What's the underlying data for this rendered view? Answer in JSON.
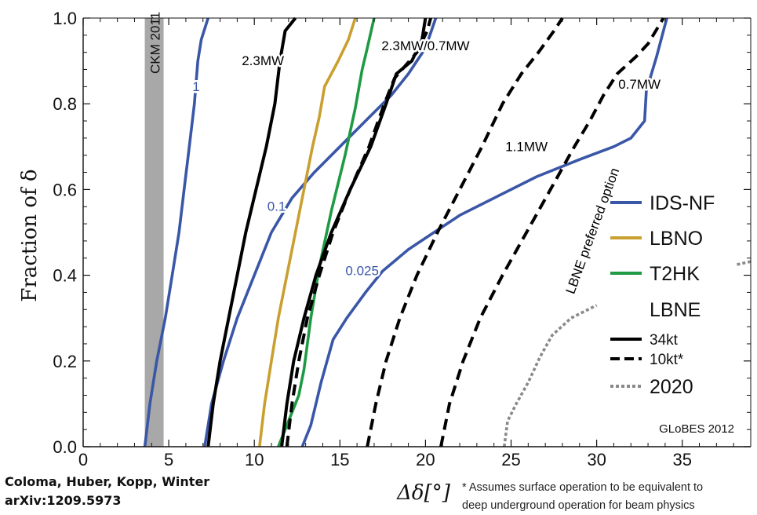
{
  "credits": {
    "authors": "Coloma, Huber, Kopp, Winter",
    "arxiv": "arXiv:1209.5973"
  },
  "footnote": {
    "line1": "* Assumes surface operation to be equivalent to",
    "line2": "deep underground operation for beam physics"
  },
  "chart_data": {
    "type": "line",
    "xlabel": "Δδ[°]",
    "ylabel": "Fraction of δ",
    "xlim": [
      0,
      39
    ],
    "ylim": [
      0,
      1
    ],
    "x_ticks": [
      "0",
      "5",
      "10",
      "15",
      "20",
      "25",
      "30",
      "35"
    ],
    "y_ticks": [
      "0.0",
      "0.2",
      "0.4",
      "0.6",
      "0.8",
      "1.0"
    ],
    "grid": false,
    "legend_position": "right",
    "colors": {
      "IDS-NF": "#3a57a7",
      "LBNO": "#c9a030",
      "T2HK": "#1f9a44",
      "LBNE": "#000000",
      "2020": "#8a8a8a",
      "band": "#a8a8a8"
    },
    "band": {
      "label": "CKM 2011",
      "x_range": [
        3.6,
        4.7
      ]
    },
    "legend": {
      "items": [
        {
          "label": "IDS-NF",
          "style": "blue"
        },
        {
          "label": "LBNO",
          "style": "gold"
        },
        {
          "label": "T2HK",
          "style": "green"
        }
      ],
      "group_title": "LBNE",
      "subitems": [
        {
          "label": "34kt",
          "style": "solid"
        },
        {
          "label": "10kt*",
          "style": "dashed"
        },
        {
          "label": "2020",
          "style": "dotted"
        }
      ]
    },
    "watermark": "GLoBES 2012",
    "annotations": [
      {
        "text": "1",
        "x": 6.6,
        "y": 0.83,
        "color": "#3a57a7"
      },
      {
        "text": "0.1",
        "x": 11.3,
        "y": 0.55,
        "color": "#3a57a7"
      },
      {
        "text": "0.025",
        "x": 16.3,
        "y": 0.4,
        "color": "#3a57a7"
      },
      {
        "text": "2.3MW",
        "x": 10.5,
        "y": 0.89,
        "color": "#000000"
      },
      {
        "text": "2.3MW/0.7MW",
        "x": 20.0,
        "y": 0.925,
        "color": "#000000"
      },
      {
        "text": "1.1MW",
        "x": 25.9,
        "y": 0.69,
        "color": "#000000"
      },
      {
        "text": "0.7MW",
        "x": 32.5,
        "y": 0.835,
        "color": "#000000"
      },
      {
        "text": "LBNE preferred option",
        "x": 30.0,
        "y": 0.5,
        "color": "#000000",
        "rotate": -70
      }
    ],
    "series": [
      {
        "name": "IDS-NF",
        "label": "1",
        "color": "#3a57a7",
        "dash": "solid",
        "points": [
          [
            3.6,
            0.0
          ],
          [
            3.9,
            0.1
          ],
          [
            4.3,
            0.2
          ],
          [
            4.8,
            0.3
          ],
          [
            5.2,
            0.4
          ],
          [
            5.6,
            0.5
          ],
          [
            5.9,
            0.6
          ],
          [
            6.2,
            0.7
          ],
          [
            6.5,
            0.8
          ],
          [
            6.7,
            0.9
          ],
          [
            6.9,
            0.95
          ],
          [
            7.3,
            1.0
          ]
        ]
      },
      {
        "name": "IDS-NF",
        "label": "0.1",
        "color": "#3a57a7",
        "dash": "solid",
        "points": [
          [
            7.1,
            0.0
          ],
          [
            7.5,
            0.1
          ],
          [
            8.2,
            0.2
          ],
          [
            9.0,
            0.3
          ],
          [
            10.0,
            0.4
          ],
          [
            11.0,
            0.5
          ],
          [
            12.2,
            0.58
          ],
          [
            13.5,
            0.64
          ],
          [
            15.0,
            0.7
          ],
          [
            16.5,
            0.76
          ],
          [
            18.0,
            0.82
          ],
          [
            19.0,
            0.87
          ],
          [
            20.0,
            0.93
          ],
          [
            20.6,
            1.0
          ]
        ]
      },
      {
        "name": "IDS-NF",
        "label": "0.025",
        "color": "#3a57a7",
        "dash": "solid",
        "points": [
          [
            12.8,
            0.0
          ],
          [
            13.3,
            0.05
          ],
          [
            13.9,
            0.15
          ],
          [
            14.6,
            0.25
          ],
          [
            15.4,
            0.3
          ],
          [
            16.5,
            0.36
          ],
          [
            17.5,
            0.41
          ],
          [
            19.0,
            0.46
          ],
          [
            20.5,
            0.5
          ],
          [
            22.0,
            0.54
          ],
          [
            24.0,
            0.58
          ],
          [
            26.5,
            0.63
          ],
          [
            29.0,
            0.67
          ],
          [
            31.0,
            0.7
          ],
          [
            32.0,
            0.72
          ],
          [
            32.8,
            0.76
          ],
          [
            32.9,
            0.83
          ],
          [
            33.5,
            0.91
          ],
          [
            33.9,
            0.97
          ],
          [
            34.1,
            1.0
          ]
        ]
      },
      {
        "name": "LBNO",
        "label": "",
        "color": "#c9a030",
        "dash": "solid",
        "points": [
          [
            10.3,
            0.0
          ],
          [
            10.6,
            0.1
          ],
          [
            11.0,
            0.2
          ],
          [
            11.4,
            0.3
          ],
          [
            11.9,
            0.4
          ],
          [
            12.4,
            0.5
          ],
          [
            12.9,
            0.6
          ],
          [
            13.4,
            0.7
          ],
          [
            13.8,
            0.77
          ],
          [
            14.1,
            0.84
          ],
          [
            14.9,
            0.9
          ],
          [
            15.5,
            0.95
          ],
          [
            15.9,
            1.0
          ]
        ]
      },
      {
        "name": "T2HK",
        "label": "",
        "color": "#1f9a44",
        "dash": "solid",
        "points": [
          [
            11.4,
            0.0
          ],
          [
            11.9,
            0.05
          ],
          [
            12.6,
            0.12
          ],
          [
            12.9,
            0.18
          ],
          [
            13.3,
            0.3
          ],
          [
            13.8,
            0.42
          ],
          [
            14.5,
            0.55
          ],
          [
            15.3,
            0.68
          ],
          [
            15.9,
            0.79
          ],
          [
            16.3,
            0.88
          ],
          [
            16.6,
            0.93
          ],
          [
            17.0,
            1.0
          ]
        ]
      },
      {
        "name": "LBNE 34kt",
        "label": "2.3MW",
        "color": "#000000",
        "dash": "solid",
        "points": [
          [
            7.3,
            0.0
          ],
          [
            7.6,
            0.1
          ],
          [
            8.0,
            0.2
          ],
          [
            8.5,
            0.3
          ],
          [
            9.0,
            0.4
          ],
          [
            9.5,
            0.5
          ],
          [
            10.1,
            0.6
          ],
          [
            10.7,
            0.7
          ],
          [
            11.2,
            0.8
          ],
          [
            11.5,
            0.9
          ],
          [
            11.8,
            0.97
          ],
          [
            12.4,
            1.0
          ]
        ]
      },
      {
        "name": "LBNE 34kt",
        "label": "2.3MW/0.7MW",
        "color": "#000000",
        "dash": "solid",
        "points": [
          [
            11.6,
            0.0
          ],
          [
            11.9,
            0.1
          ],
          [
            12.3,
            0.2
          ],
          [
            12.9,
            0.3
          ],
          [
            13.6,
            0.4
          ],
          [
            14.5,
            0.5
          ],
          [
            15.6,
            0.6
          ],
          [
            16.8,
            0.7
          ],
          [
            17.7,
            0.8
          ],
          [
            18.3,
            0.87
          ],
          [
            19.2,
            0.9
          ],
          [
            19.8,
            0.95
          ],
          [
            20.0,
            1.0
          ]
        ]
      },
      {
        "name": "LBNE 10kt*",
        "label": "2.3MW/0.7MW",
        "color": "#000000",
        "dash": "dashed",
        "points": [
          [
            11.9,
            0.0
          ],
          [
            12.2,
            0.1
          ],
          [
            12.6,
            0.2
          ],
          [
            13.1,
            0.3
          ],
          [
            13.8,
            0.4
          ],
          [
            14.6,
            0.5
          ],
          [
            15.6,
            0.6
          ],
          [
            16.7,
            0.7
          ],
          [
            17.6,
            0.8
          ],
          [
            18.2,
            0.86
          ],
          [
            19.5,
            0.92
          ],
          [
            20.1,
            0.97
          ],
          [
            20.3,
            1.0
          ]
        ]
      },
      {
        "name": "LBNE 10kt*",
        "label": "1.1MW",
        "color": "#000000",
        "dash": "dashed",
        "points": [
          [
            16.6,
            0.0
          ],
          [
            17.1,
            0.1
          ],
          [
            17.7,
            0.2
          ],
          [
            18.5,
            0.3
          ],
          [
            19.5,
            0.4
          ],
          [
            20.7,
            0.5
          ],
          [
            22.0,
            0.6
          ],
          [
            23.3,
            0.7
          ],
          [
            24.5,
            0.8
          ],
          [
            25.6,
            0.87
          ],
          [
            26.6,
            0.92
          ],
          [
            27.5,
            0.97
          ],
          [
            28.0,
            1.0
          ]
        ]
      },
      {
        "name": "LBNE 10kt*",
        "label": "0.7MW",
        "color": "#000000",
        "dash": "dashed",
        "points": [
          [
            20.9,
            0.0
          ],
          [
            21.4,
            0.1
          ],
          [
            22.2,
            0.2
          ],
          [
            23.2,
            0.3
          ],
          [
            24.5,
            0.4
          ],
          [
            25.9,
            0.5
          ],
          [
            27.3,
            0.6
          ],
          [
            28.7,
            0.7
          ],
          [
            29.6,
            0.76
          ],
          [
            30.4,
            0.82
          ],
          [
            31.2,
            0.87
          ],
          [
            32.3,
            0.91
          ],
          [
            33.0,
            0.94
          ],
          [
            33.9,
            1.0
          ]
        ]
      },
      {
        "name": "2020",
        "label": "",
        "color": "#8a8a8a",
        "dash": "dotted",
        "points": [
          [
            24.6,
            0.0
          ],
          [
            24.8,
            0.06
          ],
          [
            25.3,
            0.1
          ],
          [
            26.0,
            0.15
          ],
          [
            26.7,
            0.21
          ],
          [
            27.4,
            0.26
          ],
          [
            28.5,
            0.3
          ],
          [
            30.0,
            0.33
          ]
        ]
      },
      {
        "name": "2020",
        "label": "",
        "color": "#8a8a8a",
        "dash": "dotted",
        "points": [
          [
            38.2,
            0.425
          ],
          [
            39.0,
            0.432
          ]
        ]
      }
    ]
  }
}
